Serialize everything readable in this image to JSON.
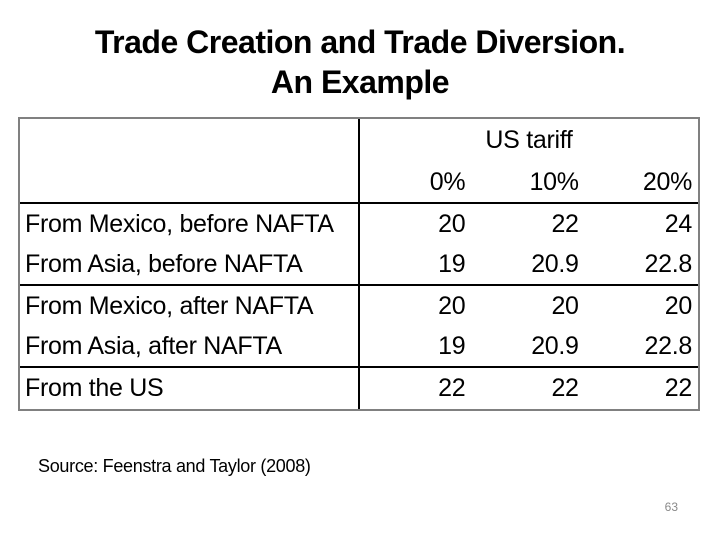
{
  "slide": {
    "title_line1": "Trade Creation and Trade Diversion.",
    "title_line2": "An Example",
    "source": "Source: Feenstra and Taylor (2008)",
    "page_number": "63"
  },
  "table": {
    "group_header": "US tariff",
    "columns": [
      "0%",
      "10%",
      "20%"
    ],
    "rows": [
      {
        "label": "From Mexico, before NAFTA",
        "values": [
          "20",
          "22",
          "24"
        ]
      },
      {
        "label": "From Asia, before NAFTA",
        "values": [
          "19",
          "20.9",
          "22.8"
        ]
      },
      {
        "label": "From Mexico, after NAFTA",
        "values": [
          "20",
          "20",
          "20"
        ]
      },
      {
        "label": "From Asia, after NAFTA",
        "values": [
          "19",
          "20.9",
          "22.8"
        ]
      },
      {
        "label": "From the US",
        "values": [
          "22",
          "22",
          "22"
        ]
      }
    ]
  },
  "colors": {
    "text": "#000000",
    "outer_border": "#808080",
    "inner_border": "#000000",
    "page_number": "#898989",
    "background": "#ffffff"
  }
}
